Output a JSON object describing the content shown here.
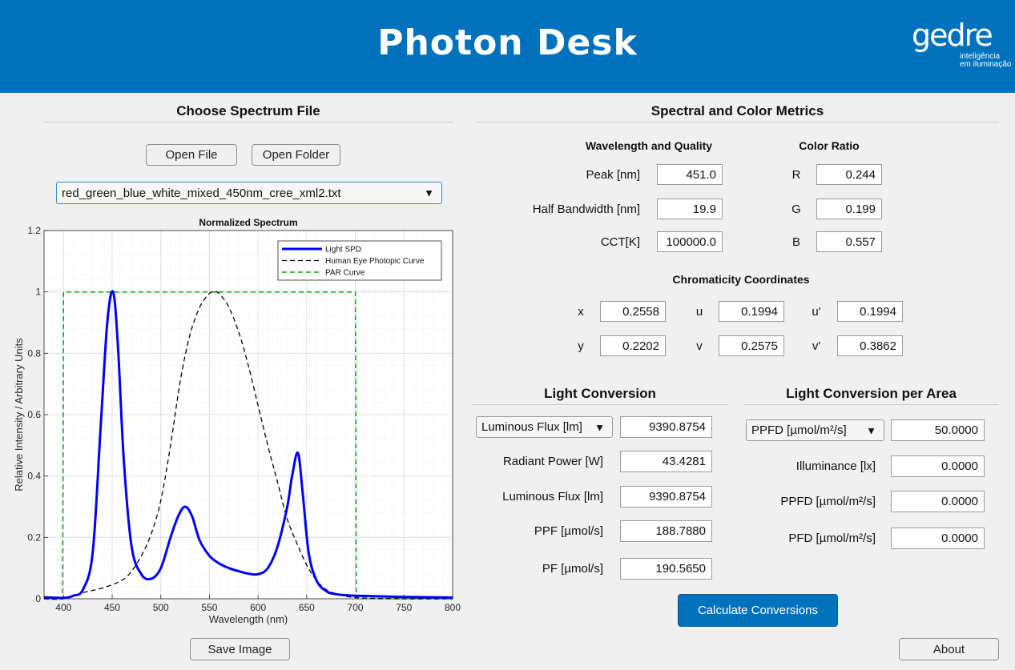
{
  "app": {
    "title": "Photon Desk"
  },
  "logo": {
    "mark": "gedre",
    "line1": "inteligência",
    "line2": "em iluminação"
  },
  "left": {
    "title": "Choose Spectrum File",
    "open_file": "Open File",
    "open_folder": "Open Folder",
    "file_select": "red_green_blue_white_mixed_450nm_cree_xml2.txt",
    "save_image": "Save Image"
  },
  "right": {
    "title": "Spectral and Color Metrics",
    "wq_title": "Wavelength and Quality",
    "peak_label": "Peak [nm]",
    "peak_value": "451.0",
    "hbw_label": "Half Bandwidth [nm]",
    "hbw_value": "19.9",
    "cct_label": "CCT[K]",
    "cct_value": "100000.0",
    "cr_title": "Color Ratio",
    "r_label": "R",
    "r_value": "0.244",
    "g_label": "G",
    "g_value": "0.199",
    "b_label": "B",
    "b_value": "0.557",
    "chroma_title": "Chromaticity Coordinates",
    "x_label": "x",
    "x_value": "0.2558",
    "y_label": "y",
    "y_value": "0.2202",
    "u_label": "u",
    "u_value": "0.1994",
    "v_label": "v",
    "v_value": "0.2575",
    "up_label": "u'",
    "up_value": "0.1994",
    "vp_label": "v'",
    "vp_value": "0.3862"
  },
  "conversion": {
    "title": "Light Conversion",
    "select": "Luminous Flux [lm]",
    "select_value": "9390.8754",
    "rp_label": "Radiant Power [W]",
    "rp_value": "43.4281",
    "lf_label": "Luminous Flux [lm]",
    "lf_value": "9390.8754",
    "ppf_label": "PPF [µmol/s]",
    "ppf_value": "188.7880",
    "pf_label": "PF [µmol/s]",
    "pf_value": "190.5650"
  },
  "area": {
    "title": "Light Conversion per Area",
    "select": "PPFD [µmol/m²/s]",
    "select_value": "50.0000",
    "ill_label": "Illuminance [lx]",
    "ill_value": "0.0000",
    "ppfd_label": "PPFD [µmol/m²/s]",
    "ppfd_value": "0.0000",
    "pfd_label": "PFD [µmol/m²/s]",
    "pfd_value": "0.0000"
  },
  "calculate": "Calculate Conversions",
  "about": "About",
  "colors": {
    "brand": "#0072bd",
    "spd": "#0000ff",
    "photopic": "#000000",
    "par": "#00aa00"
  },
  "chart_data": {
    "type": "line",
    "title": "Normalized Spectrum",
    "xlabel": "Wavelength (nm)",
    "ylabel": "Relative Intensity / Arbitrary Units",
    "xlim": [
      380,
      800
    ],
    "ylim": [
      0,
      1.2
    ],
    "xticks": [
      400,
      450,
      500,
      550,
      600,
      650,
      700,
      750,
      800
    ],
    "yticks": [
      0,
      0.2,
      0.4,
      0.6,
      0.8,
      1,
      1.2
    ],
    "ytick_labels": [
      "0",
      "0.2",
      "0.4",
      "0.6",
      "0.8",
      "1",
      "1.2"
    ],
    "grid": "on (major and minor)",
    "legend_position": "top-right",
    "series": [
      {
        "name": "Light SPD",
        "style": "solid blue",
        "x": [
          380,
          400,
          410,
          420,
          430,
          438,
          445,
          451,
          456,
          462,
          470,
          480,
          490,
          500,
          510,
          518,
          525,
          532,
          540,
          550,
          560,
          570,
          580,
          590,
          600,
          610,
          620,
          630,
          635,
          641,
          646,
          652,
          660,
          670,
          680,
          700,
          750,
          800
        ],
        "y": [
          0.005,
          0.003,
          0.01,
          0.03,
          0.15,
          0.55,
          0.9,
          1.0,
          0.82,
          0.45,
          0.17,
          0.08,
          0.065,
          0.1,
          0.2,
          0.27,
          0.3,
          0.27,
          0.19,
          0.14,
          0.115,
          0.1,
          0.09,
          0.082,
          0.08,
          0.1,
          0.17,
          0.3,
          0.4,
          0.475,
          0.34,
          0.15,
          0.06,
          0.025,
          0.015,
          0.01,
          0.006,
          0.004
        ]
      },
      {
        "name": "Human Eye Photopic Curve",
        "style": "dashed black",
        "x": [
          380,
          400,
          420,
          440,
          460,
          470,
          480,
          490,
          500,
          510,
          520,
          530,
          540,
          550,
          555,
          560,
          570,
          580,
          590,
          600,
          610,
          620,
          630,
          640,
          650,
          660,
          670,
          680,
          700,
          750,
          800
        ],
        "y": [
          0.0,
          0.0,
          0.02,
          0.035,
          0.06,
          0.09,
          0.14,
          0.21,
          0.32,
          0.5,
          0.71,
          0.86,
          0.95,
          0.995,
          1.0,
          0.995,
          0.95,
          0.87,
          0.76,
          0.63,
          0.5,
          0.38,
          0.26,
          0.18,
          0.11,
          0.06,
          0.03,
          0.017,
          0.004,
          0.0,
          0.0
        ]
      },
      {
        "name": "PAR Curve",
        "style": "dashed green",
        "x": [
          380,
          399,
          400,
          700,
          701,
          800
        ],
        "y": [
          0,
          0,
          1,
          1,
          0,
          0
        ]
      }
    ]
  }
}
